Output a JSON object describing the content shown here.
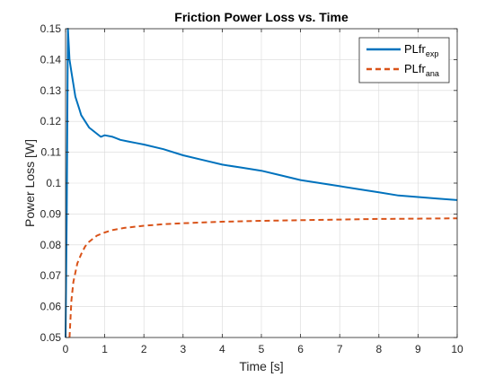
{
  "chart_data": {
    "type": "line",
    "title": "Friction Power Loss vs. Time",
    "xlabel": "Time [s]",
    "ylabel": "Power Loss [W]",
    "xlim": [
      0,
      10
    ],
    "ylim": [
      0.05,
      0.15
    ],
    "xticks": [
      0,
      1,
      2,
      3,
      4,
      5,
      6,
      7,
      8,
      9,
      10
    ],
    "yticks": [
      0.05,
      0.06,
      0.07,
      0.08,
      0.09,
      0.1,
      0.11,
      0.12,
      0.13,
      0.14,
      0.15
    ],
    "ytick_labels": [
      "0.05",
      "0.06",
      "0.07",
      "0.08",
      "0.09",
      "0.1",
      "0.11",
      "0.12",
      "0.13",
      "0.14",
      "0.15"
    ],
    "grid": true,
    "legend_position": "top-right",
    "series": [
      {
        "name": "PLfr",
        "name_subscript": "exp",
        "color": "#0072BD",
        "style": "solid",
        "x": [
          0,
          0.03,
          0.06,
          0.08,
          0.1,
          0.15,
          0.2,
          0.25,
          0.3,
          0.35,
          0.4,
          0.5,
          0.6,
          0.7,
          0.8,
          0.9,
          1.0,
          1.2,
          1.4,
          1.6,
          1.8,
          2.0,
          2.5,
          3.0,
          3.5,
          4.0,
          4.5,
          5.0,
          5.5,
          6.0,
          6.5,
          7.0,
          7.5,
          8.0,
          8.5,
          9.0,
          9.5,
          10.0
        ],
        "y": [
          0.05,
          0.09,
          0.15,
          0.145,
          0.14,
          0.136,
          0.132,
          0.128,
          0.126,
          0.124,
          0.122,
          0.12,
          0.118,
          0.117,
          0.116,
          0.115,
          0.1155,
          0.115,
          0.114,
          0.1135,
          0.113,
          0.1125,
          0.111,
          0.109,
          0.1075,
          0.106,
          0.105,
          0.104,
          0.1025,
          0.101,
          0.1,
          0.099,
          0.098,
          0.097,
          0.096,
          0.0955,
          0.095,
          0.0945
        ]
      },
      {
        "name": "PLfr",
        "name_subscript": "ana",
        "color": "#D95319",
        "style": "dashed",
        "x": [
          0.1,
          0.15,
          0.2,
          0.3,
          0.4,
          0.5,
          0.6,
          0.7,
          0.8,
          1.0,
          1.2,
          1.5,
          2.0,
          2.5,
          3.0,
          4.0,
          5.0,
          6.0,
          7.0,
          8.0,
          9.0,
          10.0
        ],
        "y": [
          0.05,
          0.062,
          0.068,
          0.074,
          0.077,
          0.0795,
          0.081,
          0.082,
          0.083,
          0.084,
          0.0848,
          0.0855,
          0.0862,
          0.0867,
          0.087,
          0.0875,
          0.0878,
          0.088,
          0.0882,
          0.0884,
          0.0885,
          0.0886
        ]
      }
    ]
  }
}
